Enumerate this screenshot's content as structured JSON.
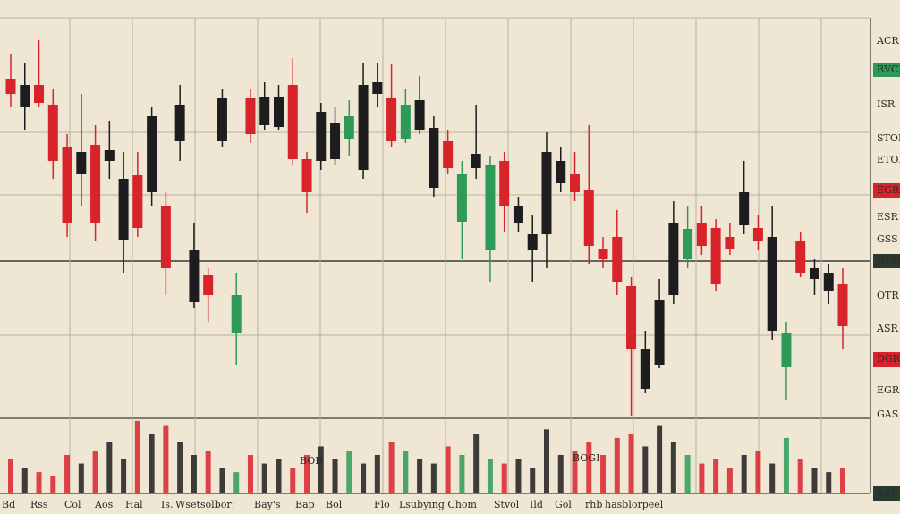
{
  "chart_data": {
    "type": "candlestick",
    "ylim": [
      0,
      448
    ],
    "open": [
      380,
      373,
      373,
      350,
      303,
      298,
      306,
      300,
      268,
      272,
      338,
      238,
      350,
      188,
      160,
      358,
      96,
      358,
      360,
      360,
      373,
      290,
      343,
      330,
      313,
      373,
      376,
      358,
      313,
      356,
      325,
      310,
      220,
      296,
      188,
      288,
      238,
      206,
      298,
      288,
      273,
      256,
      190,
      203,
      148,
      78,
      132,
      218,
      178,
      218,
      213,
      203,
      253,
      213,
      203,
      58,
      198,
      168,
      163,
      150
    ],
    "high": [
      408,
      398,
      423,
      368,
      318,
      363,
      328,
      333,
      298,
      298,
      348,
      253,
      373,
      218,
      168,
      368,
      163,
      368,
      376,
      373,
      403,
      298,
      353,
      348,
      356,
      398,
      398,
      396,
      368,
      383,
      338,
      323,
      288,
      350,
      293,
      298,
      248,
      228,
      320,
      303,
      298,
      328,
      203,
      233,
      158,
      98,
      156,
      243,
      238,
      238,
      223,
      218,
      288,
      228,
      238,
      108,
      208,
      178,
      173,
      168
    ],
    "low": [
      348,
      323,
      348,
      268,
      203,
      238,
      198,
      268,
      163,
      203,
      238,
      138,
      288,
      123,
      108,
      303,
      60,
      308,
      323,
      323,
      283,
      230,
      278,
      283,
      293,
      268,
      348,
      303,
      308,
      318,
      248,
      273,
      178,
      268,
      153,
      208,
      208,
      153,
      168,
      253,
      243,
      173,
      168,
      138,
      3,
      28,
      56,
      128,
      168,
      183,
      143,
      183,
      206,
      188,
      88,
      20,
      158,
      138,
      128,
      78
    ],
    "close": [
      363,
      348,
      353,
      288,
      218,
      273,
      218,
      288,
      200,
      213,
      253,
      168,
      310,
      130,
      138,
      310,
      138,
      318,
      328,
      326,
      290,
      253,
      288,
      290,
      338,
      278,
      363,
      310,
      350,
      323,
      258,
      280,
      273,
      280,
      283,
      238,
      218,
      188,
      206,
      263,
      253,
      193,
      178,
      153,
      78,
      33,
      60,
      138,
      212,
      193,
      150,
      190,
      216,
      198,
      98,
      96,
      163,
      156,
      143,
      103
    ],
    "colors": [
      "#d9232b",
      "#1d1d1f",
      "#d9232b",
      "#d9232b",
      "#d9232b",
      "#1d1d1f",
      "#d9232b",
      "#1d1d1f",
      "#1d1d1f",
      "#d9232b",
      "#1d1d1f",
      "#d9232b",
      "#1d1d1f",
      "#1d1d1f",
      "#d9232b",
      "#1d1d1f",
      "#2e9a57",
      "#d9232b",
      "#1d1d1f",
      "#1d1d1f",
      "#d9232b",
      "#d9232b",
      "#1d1d1f",
      "#1d1d1f",
      "#2e9a57",
      "#1d1d1f",
      "#1d1d1f",
      "#d9232b",
      "#2e9a57",
      "#1d1d1f",
      "#1d1d1f",
      "#d9232b",
      "#2e9a57",
      "#1d1d1f",
      "#2e9a57",
      "#d9232b",
      "#1d1d1f",
      "#1d1d1f",
      "#1d1d1f",
      "#1d1d1f",
      "#d9232b",
      "#d9232b",
      "#d9232b",
      "#d9232b",
      "#d9232b",
      "#1d1d1f",
      "#1d1d1f",
      "#1d1d1f",
      "#2e9a57",
      "#d9232b",
      "#d9232b",
      "#d9232b",
      "#1d1d1f",
      "#d9232b",
      "#1d1d1f",
      "#2e9a57",
      "#d9232b",
      "#1d1d1f",
      "#1d1d1f",
      "#d9232b"
    ],
    "volume": {
      "ylim": [
        0,
        90
      ],
      "values": [
        40,
        30,
        25,
        20,
        45,
        35,
        50,
        60,
        40,
        85,
        70,
        80,
        60,
        45,
        50,
        30,
        25,
        45,
        35,
        40,
        30,
        45,
        55,
        40,
        50,
        35,
        45,
        60,
        50,
        40,
        35,
        55,
        45,
        70,
        40,
        35,
        40,
        30,
        75,
        45,
        50,
        60,
        45,
        65,
        70,
        55,
        80,
        60,
        45,
        35,
        40,
        30,
        45,
        50,
        35,
        65,
        40,
        30,
        25,
        30
      ]
    },
    "right_labels": [
      {
        "text": "ACR"
      },
      {
        "text": "BVCR",
        "box": "#2e9a57"
      },
      {
        "text": "ISR"
      },
      {
        "text": "STOR"
      },
      {
        "text": "ETOR"
      },
      {
        "text": "EGR",
        "box": "#d9232b"
      },
      {
        "text": "ESR"
      },
      {
        "text": "GSS"
      },
      {
        "text": "BTAR",
        "box": "#2b3a30"
      },
      {
        "text": "OTR"
      },
      {
        "text": "ASR"
      },
      {
        "text": "DGR",
        "box": "#d9232b"
      },
      {
        "text": "EGR"
      },
      {
        "text": "GAS"
      },
      {
        "text": "ASR",
        "box": "#2b3a30"
      }
    ],
    "volume_labels": [
      "BOD",
      "BOGI"
    ],
    "bottom_labels": [
      "Bd",
      "Rss",
      "Col",
      "Aos",
      "Hal",
      "Is.",
      "Wsetsolbor:",
      "Bay's",
      "Bap",
      "Bol",
      "Flo",
      "Lsubying Chom",
      "Stvol",
      "Ild",
      "Gol",
      "rhb",
      "hasblorpeel"
    ]
  }
}
